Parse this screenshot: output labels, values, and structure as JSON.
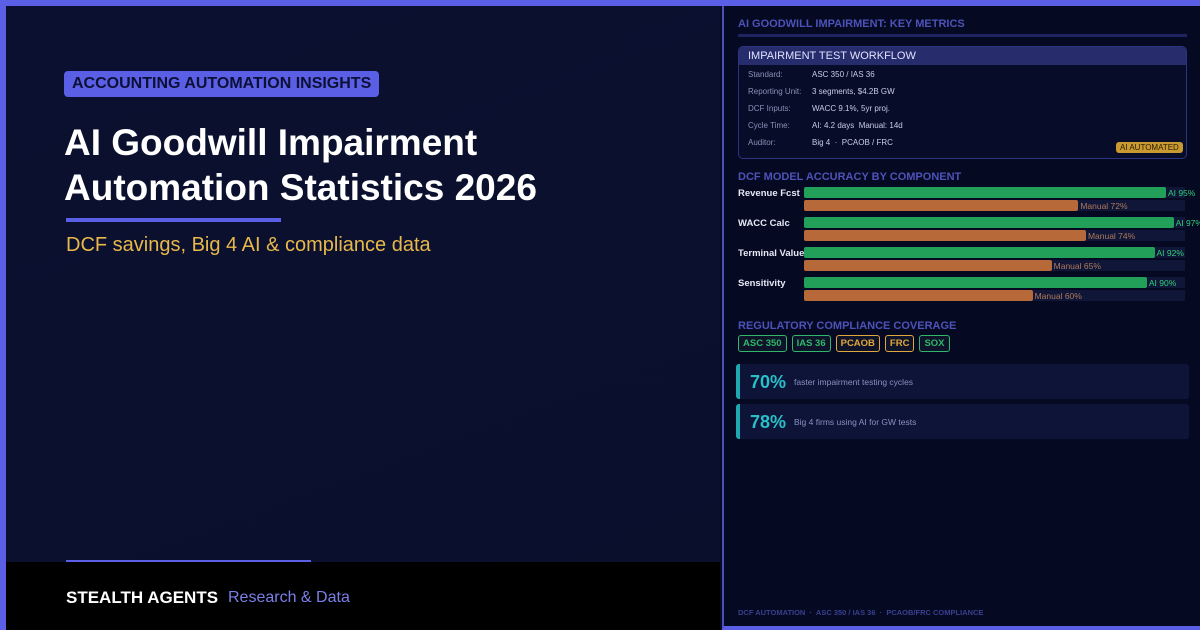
{
  "badge": "ACCOUNTING AUTOMATION INSIGHTS",
  "title_lines": [
    "AI Goodwill Impairment",
    "Automation Statistics 2026"
  ],
  "subtitle": "DCF savings, Big 4 AI & compliance data",
  "footer": {
    "brand": "STEALTH AGENTS",
    "tagline": "Research & Data"
  },
  "panel": {
    "heading": "AI GOODWILL IMPAIRMENT: KEY METRICS",
    "workflow": {
      "title": "IMPAIRMENT TEST WORKFLOW",
      "rows": [
        [
          "Standard:",
          "ASC 350 / IAS 36"
        ],
        [
          "Reporting Unit:",
          "3 segments, $4.2B GW"
        ],
        [
          "DCF Inputs:",
          "WACC 9.1%, 5yr proj."
        ],
        [
          "Cycle Time:",
          "AI: 4.2 days  Manual: 14d"
        ],
        [
          "Auditor:",
          "Big 4  ·  PCAOB / FRC"
        ]
      ],
      "tag": "AI AUTOMATED"
    },
    "accuracy": {
      "title": "DCF MODEL ACCURACY BY COMPONENT",
      "ai_color": "#22a05a",
      "manual_color": "#b8693a",
      "items": [
        {
          "label": "Revenue Fcst",
          "ai": 95,
          "ai_label": "AI 95%",
          "manual": 72,
          "manual_label": "Manual 72%"
        },
        {
          "label": "WACC Calc",
          "ai": 97,
          "ai_label": "AI 97%",
          "manual": 74,
          "manual_label": "Manual 74%"
        },
        {
          "label": "Terminal Value",
          "ai": 92,
          "ai_label": "AI 92%",
          "manual": 65,
          "manual_label": "Manual 65%"
        },
        {
          "label": "Sensitivity",
          "ai": 90,
          "ai_label": "AI 90%",
          "manual": 60,
          "manual_label": "Manual 60%"
        }
      ]
    },
    "compliance": {
      "title": "REGULATORY COMPLIANCE COVERAGE",
      "tags": [
        {
          "text": "ASC 350",
          "color": "#2fb86a"
        },
        {
          "text": "IAS 36",
          "color": "#2fb86a"
        },
        {
          "text": "PCAOB",
          "color": "#e0a83a"
        },
        {
          "text": "FRC",
          "color": "#e0a83a"
        },
        {
          "text": "SOX",
          "color": "#2fb86a"
        }
      ]
    },
    "stats": [
      {
        "value": "70%",
        "text": "faster impairment testing cycles"
      },
      {
        "value": "78%",
        "text": "Big 4 firms using AI for GW tests"
      }
    ],
    "footer": "DCF AUTOMATION  ·  ASC 350 / IAS 36  ·  PCAOB/FRC COMPLIANCE"
  }
}
